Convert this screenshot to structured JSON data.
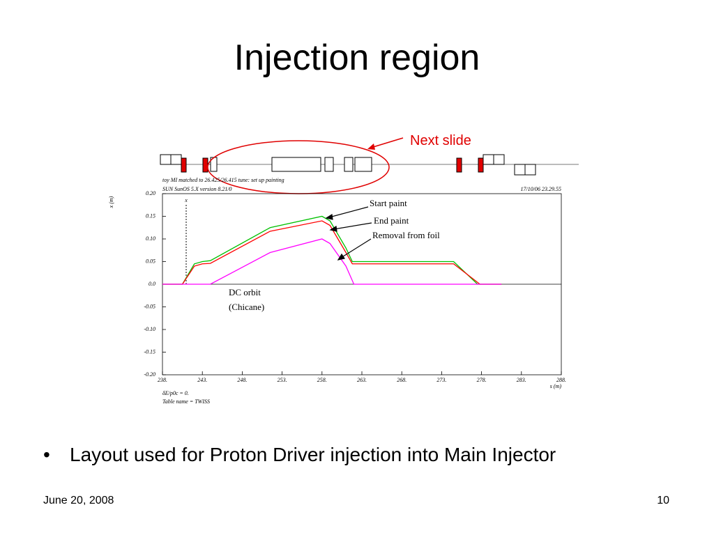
{
  "slide": {
    "title": "Injection region",
    "bullet": "Layout used for Proton Driver injection into Main Injector",
    "date": "June 20, 2008",
    "page": "10",
    "callout": "Next slide"
  },
  "chart_data": {
    "type": "line",
    "header_left": "toy MI matched to 26.425/26.415 tune: set up painting",
    "header_info": "SUN SunOS 5.X version 8.21/0",
    "header_right": "17/10/06 23.29.55",
    "footer_1": "δE/p0c = 0.",
    "footer_2": "Table name = TWISS",
    "xlabel": "s (m)",
    "ylabel": "x (m)",
    "marker_label": "x",
    "annotations": [
      "Start paint",
      "End paint",
      "Removal from foil",
      "DC orbit",
      "(Chicane)"
    ],
    "xlim": [
      238,
      288
    ],
    "xticks": [
      {
        "value": 238,
        "label": "238."
      },
      {
        "value": 243,
        "label": "243."
      },
      {
        "value": 248,
        "label": "248."
      },
      {
        "value": 253,
        "label": "253."
      },
      {
        "value": 258,
        "label": "258."
      },
      {
        "value": 263,
        "label": "263."
      },
      {
        "value": 268,
        "label": "268."
      },
      {
        "value": 273,
        "label": "273."
      },
      {
        "value": 278,
        "label": "278."
      },
      {
        "value": 283,
        "label": "283."
      },
      {
        "value": 288,
        "label": "288."
      }
    ],
    "ylim": [
      -0.2,
      0.2
    ],
    "yticks": [
      {
        "value": -0.2,
        "label": "-0.20"
      },
      {
        "value": -0.15,
        "label": "-0.15"
      },
      {
        "value": -0.1,
        "label": "-0.10"
      },
      {
        "value": -0.05,
        "label": "-0.05"
      },
      {
        "value": 0,
        "label": "0.0"
      },
      {
        "value": 0.05,
        "label": "0.05"
      },
      {
        "value": 0.1,
        "label": "0.10"
      },
      {
        "value": 0.15,
        "label": "0.15"
      },
      {
        "value": 0.2,
        "label": "0.20"
      }
    ],
    "series": [
      {
        "color": "#00c000",
        "x": [
          238,
          240.5,
          242,
          243,
          244,
          251.5,
          258,
          259,
          261,
          261.8,
          274.5,
          277.5,
          280.5
        ],
        "values": [
          0,
          0,
          0.045,
          0.05,
          0.052,
          0.125,
          0.15,
          0.14,
          0.08,
          0.05,
          0.05,
          0,
          0
        ]
      },
      {
        "color": "#ff0000",
        "x": [
          238,
          240.5,
          242,
          243,
          244,
          251.5,
          258,
          259,
          261,
          261.8,
          274.5,
          277.8,
          280.5
        ],
        "values": [
          0,
          0,
          0.04,
          0.045,
          0.046,
          0.117,
          0.14,
          0.13,
          0.07,
          0.045,
          0.045,
          0,
          0
        ]
      },
      {
        "color": "#ff00ff",
        "x": [
          238,
          244,
          251.5,
          258,
          259,
          261,
          262,
          280.5
        ],
        "values": [
          0,
          0,
          0.07,
          0.1,
          0.09,
          0.04,
          0,
          0
        ]
      }
    ]
  }
}
